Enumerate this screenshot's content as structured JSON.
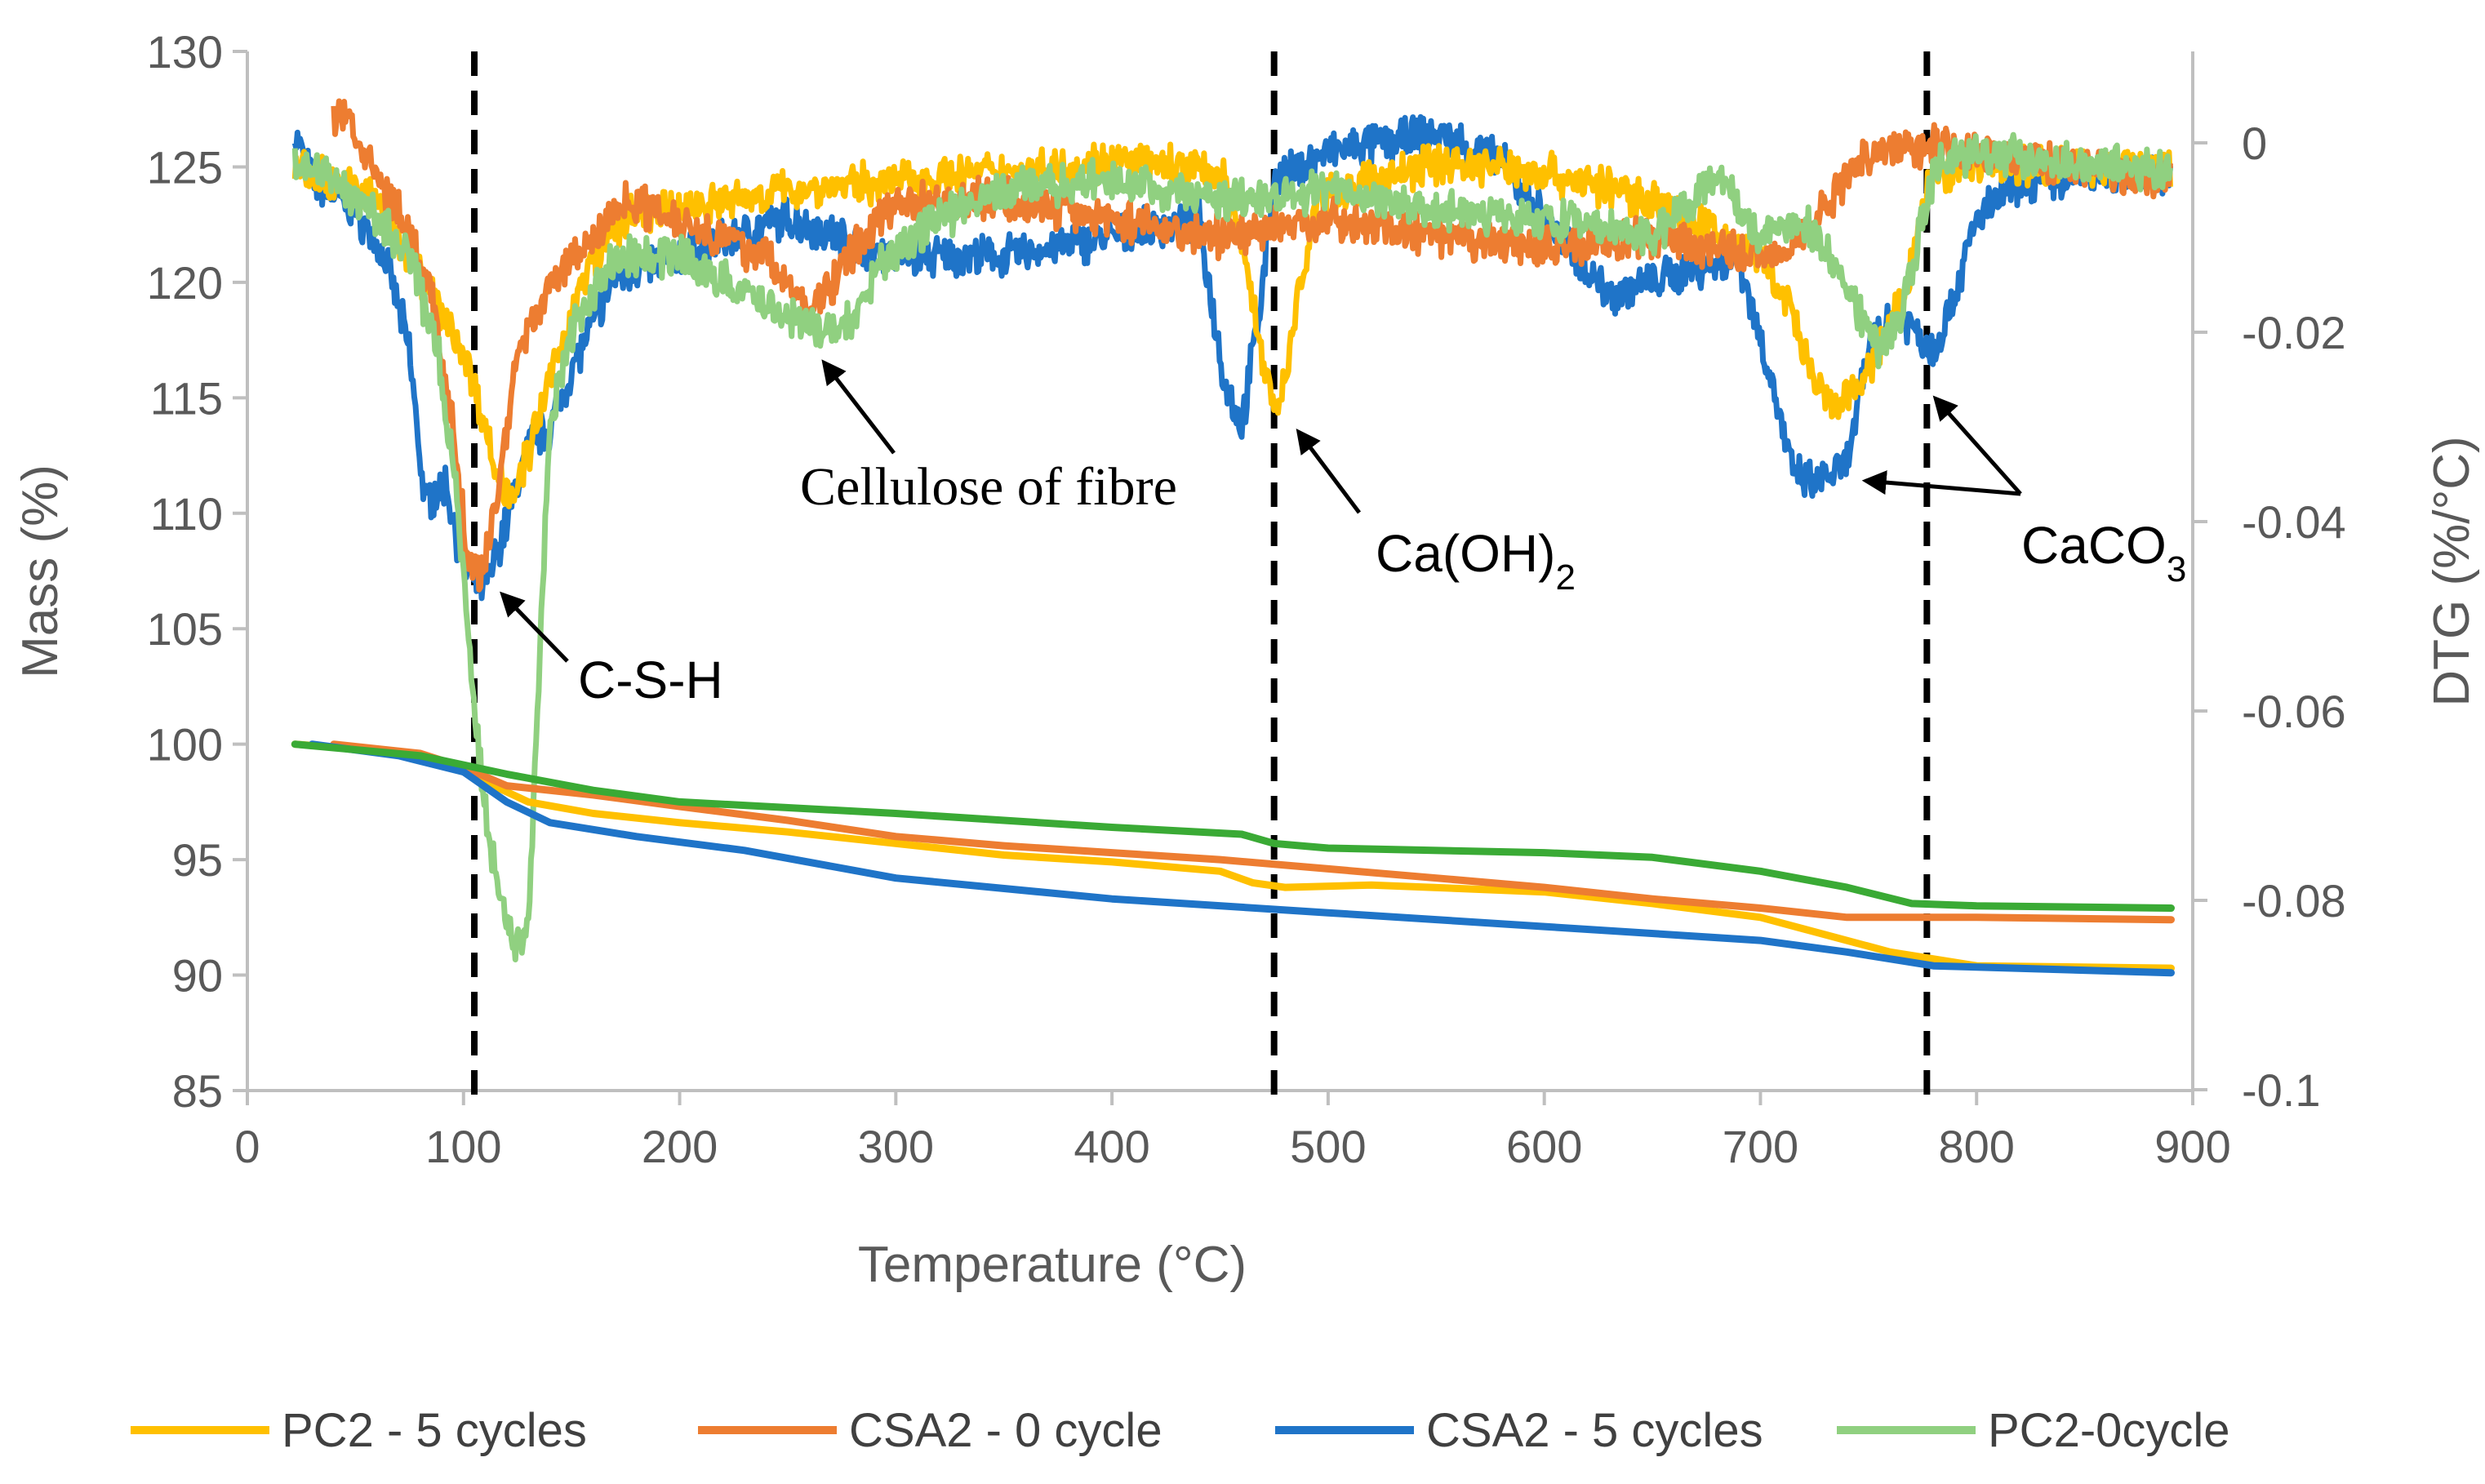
{
  "chart_data": {
    "type": "line",
    "title": "",
    "xlabel": "Temperature (°C)",
    "ylabel": "Mass (%)",
    "y2label": "DTG (%/°C)",
    "xlim": [
      0,
      900
    ],
    "ylim": [
      85,
      130
    ],
    "y2lim": [
      -0.1,
      0.01
    ],
    "xticks": [
      "0",
      "100",
      "200",
      "300",
      "400",
      "500",
      "600",
      "700",
      "800",
      "900"
    ],
    "yticks": [
      "85",
      "90",
      "95",
      "100",
      "105",
      "110",
      "115",
      "120",
      "125",
      "130"
    ],
    "y2ticks": [
      "0",
      "-0.02",
      "-0.04",
      "-0.06",
      "-0.08",
      "-0.1"
    ],
    "grid": false,
    "legend_position": "bottom",
    "colors": {
      "pc2_5": "#FFC000",
      "csa2_0": "#ED7D31",
      "csa2_5": "#1F74C8",
      "pc2_0_dtg": "#90D080",
      "pc2_0_mass": "#3AAA35",
      "axis": "#BFBFBF",
      "text": "#595959"
    },
    "vlines": [
      105,
      475,
      777
    ],
    "annotations": [
      {
        "id": "csh",
        "text": "C-S-H",
        "x": 112,
        "y2": -0.047
      },
      {
        "id": "cellulose",
        "text": "Cellulose of fibre",
        "x": 260,
        "y2": -0.022
      },
      {
        "id": "caoh2",
        "text": "Ca(OH)",
        "sub": "2",
        "x": 478,
        "y2": -0.03
      },
      {
        "id": "caco3",
        "text": "CaCO",
        "sub": "3",
        "x": 742,
        "y2": -0.035
      }
    ],
    "legend": [
      "PC2 - 5 cycles",
      "CSA2 - 0 cycle",
      "CSA2 - 5 cycles",
      "PC2-0cycle"
    ],
    "series": [
      {
        "name": "PC2 - 5 cycles",
        "color_key": "pc2_5",
        "mass": [
          [
            22,
            100
          ],
          [
            50,
            99.8
          ],
          [
            80,
            99.4
          ],
          [
            100,
            98.8
          ],
          [
            130,
            97.5
          ],
          [
            160,
            97.0
          ],
          [
            200,
            96.6
          ],
          [
            250,
            96.2
          ],
          [
            300,
            95.7
          ],
          [
            350,
            95.2
          ],
          [
            400,
            94.9
          ],
          [
            450,
            94.5
          ],
          [
            465,
            94.0
          ],
          [
            480,
            93.8
          ],
          [
            520,
            93.9
          ],
          [
            600,
            93.6
          ],
          [
            650,
            93.1
          ],
          [
            700,
            92.5
          ],
          [
            720,
            92.0
          ],
          [
            760,
            91.0
          ],
          [
            800,
            90.4
          ],
          [
            890,
            90.3
          ]
        ],
        "dtg": [
          [
            22,
            -0.003
          ],
          [
            40,
            -0.004
          ],
          [
            60,
            -0.006
          ],
          [
            75,
            -0.012
          ],
          [
            90,
            -0.018
          ],
          [
            100,
            -0.022
          ],
          [
            108,
            -0.028
          ],
          [
            115,
            -0.035
          ],
          [
            122,
            -0.037
          ],
          [
            130,
            -0.033
          ],
          [
            140,
            -0.025
          ],
          [
            150,
            -0.018
          ],
          [
            160,
            -0.012
          ],
          [
            175,
            -0.008
          ],
          [
            200,
            -0.007
          ],
          [
            250,
            -0.005
          ],
          [
            300,
            -0.004
          ],
          [
            350,
            -0.003
          ],
          [
            400,
            -0.002
          ],
          [
            450,
            -0.003
          ],
          [
            462,
            -0.012
          ],
          [
            470,
            -0.024
          ],
          [
            478,
            -0.028
          ],
          [
            485,
            -0.018
          ],
          [
            495,
            -0.006
          ],
          [
            550,
            -0.002
          ],
          [
            600,
            -0.003
          ],
          [
            650,
            -0.006
          ],
          [
            700,
            -0.012
          ],
          [
            715,
            -0.018
          ],
          [
            725,
            -0.026
          ],
          [
            735,
            -0.028
          ],
          [
            745,
            -0.026
          ],
          [
            755,
            -0.022
          ],
          [
            768,
            -0.015
          ],
          [
            778,
            -0.004
          ],
          [
            800,
            -0.002
          ],
          [
            890,
            -0.003
          ]
        ]
      },
      {
        "name": "CSA2 - 0 cycle",
        "color_key": "csa2_0",
        "mass": [
          [
            40,
            100
          ],
          [
            80,
            99.6
          ],
          [
            100,
            99.0
          ],
          [
            120,
            98.2
          ],
          [
            160,
            97.8
          ],
          [
            200,
            97.3
          ],
          [
            250,
            96.7
          ],
          [
            300,
            96.0
          ],
          [
            350,
            95.6
          ],
          [
            400,
            95.3
          ],
          [
            450,
            95.0
          ],
          [
            500,
            94.6
          ],
          [
            550,
            94.2
          ],
          [
            600,
            93.8
          ],
          [
            650,
            93.3
          ],
          [
            700,
            92.9
          ],
          [
            740,
            92.5
          ],
          [
            800,
            92.5
          ],
          [
            890,
            92.4
          ]
        ],
        "dtg": [
          [
            40,
            0.002
          ],
          [
            45,
            0.004
          ],
          [
            55,
            -0.002
          ],
          [
            70,
            -0.007
          ],
          [
            85,
            -0.016
          ],
          [
            95,
            -0.03
          ],
          [
            102,
            -0.044
          ],
          [
            108,
            -0.046
          ],
          [
            115,
            -0.038
          ],
          [
            125,
            -0.022
          ],
          [
            140,
            -0.015
          ],
          [
            160,
            -0.01
          ],
          [
            175,
            -0.006
          ],
          [
            200,
            -0.008
          ],
          [
            240,
            -0.012
          ],
          [
            260,
            -0.018
          ],
          [
            270,
            -0.015
          ],
          [
            285,
            -0.01
          ],
          [
            300,
            -0.006
          ],
          [
            350,
            -0.006
          ],
          [
            400,
            -0.008
          ],
          [
            450,
            -0.01
          ],
          [
            500,
            -0.008
          ],
          [
            550,
            -0.01
          ],
          [
            600,
            -0.011
          ],
          [
            650,
            -0.01
          ],
          [
            700,
            -0.012
          ],
          [
            720,
            -0.01
          ],
          [
            735,
            -0.005
          ],
          [
            750,
            -0.001
          ],
          [
            780,
            -0.0
          ],
          [
            800,
            -0.001
          ],
          [
            890,
            -0.004
          ]
        ]
      },
      {
        "name": "CSA2 - 5 cycles",
        "color_key": "csa2_5",
        "mass": [
          [
            30,
            100
          ],
          [
            70,
            99.5
          ],
          [
            100,
            98.8
          ],
          [
            120,
            97.5
          ],
          [
            140,
            96.6
          ],
          [
            180,
            96.0
          ],
          [
            230,
            95.4
          ],
          [
            300,
            94.2
          ],
          [
            400,
            93.3
          ],
          [
            500,
            92.7
          ],
          [
            600,
            92.1
          ],
          [
            700,
            91.5
          ],
          [
            740,
            91.0
          ],
          [
            780,
            90.4
          ],
          [
            890,
            90.1
          ]
        ],
        "dtg": [
          [
            22,
            0.001
          ],
          [
            30,
            -0.004
          ],
          [
            50,
            -0.007
          ],
          [
            65,
            -0.013
          ],
          [
            75,
            -0.022
          ],
          [
            82,
            -0.038
          ],
          [
            92,
            -0.036
          ],
          [
            100,
            -0.045
          ],
          [
            110,
            -0.047
          ],
          [
            120,
            -0.04
          ],
          [
            130,
            -0.032
          ],
          [
            140,
            -0.03
          ],
          [
            150,
            -0.024
          ],
          [
            170,
            -0.014
          ],
          [
            200,
            -0.012
          ],
          [
            250,
            -0.008
          ],
          [
            300,
            -0.012
          ],
          [
            350,
            -0.012
          ],
          [
            400,
            -0.01
          ],
          [
            440,
            -0.008
          ],
          [
            452,
            -0.025
          ],
          [
            460,
            -0.03
          ],
          [
            468,
            -0.018
          ],
          [
            475,
            -0.004
          ],
          [
            500,
            -0.001
          ],
          [
            550,
            0.001
          ],
          [
            580,
            -0.002
          ],
          [
            600,
            -0.008
          ],
          [
            630,
            -0.016
          ],
          [
            660,
            -0.014
          ],
          [
            690,
            -0.012
          ],
          [
            705,
            -0.025
          ],
          [
            715,
            -0.035
          ],
          [
            725,
            -0.036
          ],
          [
            740,
            -0.034
          ],
          [
            752,
            -0.02
          ],
          [
            765,
            -0.018
          ],
          [
            780,
            -0.022
          ],
          [
            790,
            -0.016
          ],
          [
            800,
            -0.008
          ],
          [
            820,
            -0.004
          ],
          [
            890,
            -0.003
          ]
        ]
      },
      {
        "name": "PC2-0cycle",
        "color_key": "pc2_0_dtg",
        "mass_color_key": "pc2_0_mass",
        "mass": [
          [
            22,
            100
          ],
          [
            80,
            99.5
          ],
          [
            120,
            98.7
          ],
          [
            160,
            98.0
          ],
          [
            200,
            97.5
          ],
          [
            300,
            97.0
          ],
          [
            400,
            96.4
          ],
          [
            460,
            96.1
          ],
          [
            475,
            95.7
          ],
          [
            500,
            95.5
          ],
          [
            600,
            95.3
          ],
          [
            650,
            95.1
          ],
          [
            700,
            94.5
          ],
          [
            740,
            93.8
          ],
          [
            770,
            93.1
          ],
          [
            800,
            93.0
          ],
          [
            890,
            92.9
          ]
        ],
        "dtg": [
          [
            22,
            -0.002
          ],
          [
            40,
            -0.004
          ],
          [
            60,
            -0.008
          ],
          [
            75,
            -0.012
          ],
          [
            88,
            -0.022
          ],
          [
            95,
            -0.034
          ],
          [
            100,
            -0.045
          ],
          [
            105,
            -0.06
          ],
          [
            110,
            -0.07
          ],
          [
            115,
            -0.078
          ],
          [
            120,
            -0.082
          ],
          [
            125,
            -0.085
          ],
          [
            130,
            -0.082
          ],
          [
            135,
            -0.055
          ],
          [
            140,
            -0.03
          ],
          [
            150,
            -0.02
          ],
          [
            170,
            -0.012
          ],
          [
            200,
            -0.012
          ],
          [
            230,
            -0.016
          ],
          [
            250,
            -0.018
          ],
          [
            265,
            -0.02
          ],
          [
            280,
            -0.019
          ],
          [
            295,
            -0.012
          ],
          [
            320,
            -0.008
          ],
          [
            350,
            -0.005
          ],
          [
            400,
            -0.004
          ],
          [
            450,
            -0.006
          ],
          [
            500,
            -0.005
          ],
          [
            550,
            -0.007
          ],
          [
            600,
            -0.008
          ],
          [
            650,
            -0.01
          ],
          [
            680,
            -0.003
          ],
          [
            700,
            -0.01
          ],
          [
            720,
            -0.008
          ],
          [
            740,
            -0.015
          ],
          [
            755,
            -0.022
          ],
          [
            765,
            -0.018
          ],
          [
            775,
            -0.008
          ],
          [
            782,
            -0.002
          ],
          [
            800,
            -0.001
          ],
          [
            890,
            -0.003
          ]
        ]
      }
    ]
  }
}
